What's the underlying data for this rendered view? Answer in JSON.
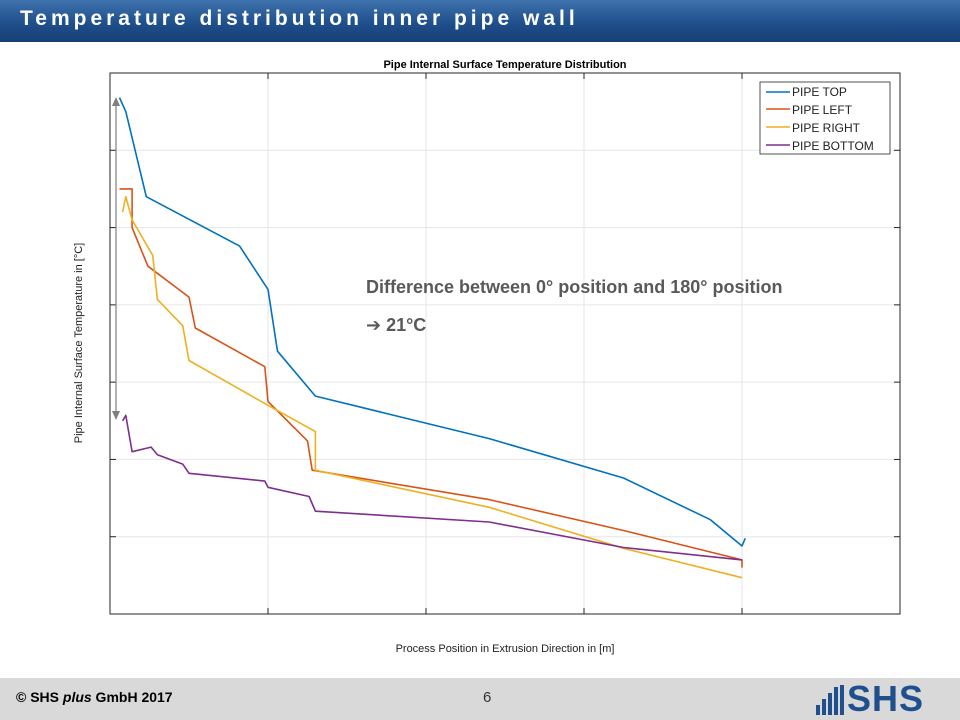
{
  "slide": {
    "title": "Temperature distribution inner pipe wall",
    "copyright_prefix": "© SHS ",
    "copyright_italic": "plus",
    "copyright_suffix": " GmbH 2017",
    "page_number": "6",
    "logo_text": "SHS"
  },
  "colors": {
    "title_bar": "#1f4f8c",
    "footer": "#d9d9d9",
    "pipe_top": "#0072bd",
    "pipe_left": "#d95319",
    "pipe_right": "#edb120",
    "pipe_bottom": "#7e2f8e",
    "annotation": "#595959"
  },
  "annotation": {
    "text": "Difference between 0° position and 180° position",
    "result": "➔ 21°C"
  },
  "chart_data": {
    "type": "line",
    "title": "Pipe Internal Surface Temperature Distribution",
    "xlabel": "Process Position in Extrusion Direction in [m]",
    "ylabel": "Pipe Internal Surface Temperature in [°C]",
    "xlim": [
      0,
      5
    ],
    "ylim": [
      0,
      7
    ],
    "x_tick_labels_shown": false,
    "y_tick_labels_shown": false,
    "grid": true,
    "legend_position": "top-right",
    "series": [
      {
        "name": "PIPE TOP",
        "color": "#0072bd",
        "points": [
          [
            0.06,
            6.68
          ],
          [
            0.1,
            6.5
          ],
          [
            0.23,
            5.4
          ],
          [
            0.82,
            4.76
          ],
          [
            1.0,
            4.2
          ],
          [
            1.06,
            3.4
          ],
          [
            1.3,
            2.82
          ],
          [
            2.4,
            2.27
          ],
          [
            3.25,
            1.76
          ],
          [
            3.8,
            1.22
          ],
          [
            4.0,
            0.88
          ],
          [
            4.02,
            0.98
          ]
        ]
      },
      {
        "name": "PIPE LEFT",
        "color": "#d95319",
        "points": [
          [
            0.06,
            5.5
          ],
          [
            0.14,
            5.5
          ],
          [
            0.14,
            5.0
          ],
          [
            0.24,
            4.5
          ],
          [
            0.5,
            4.1
          ],
          [
            0.54,
            3.7
          ],
          [
            0.98,
            3.2
          ],
          [
            1.0,
            2.75
          ],
          [
            1.25,
            2.24
          ],
          [
            1.28,
            1.86
          ],
          [
            2.4,
            1.48
          ],
          [
            3.25,
            1.08
          ],
          [
            4.0,
            0.7
          ],
          [
            4.0,
            0.6
          ]
        ]
      },
      {
        "name": "PIPE RIGHT",
        "color": "#edb120",
        "points": [
          [
            0.08,
            5.2
          ],
          [
            0.1,
            5.4
          ],
          [
            0.14,
            5.1
          ],
          [
            0.27,
            4.64
          ],
          [
            0.3,
            4.07
          ],
          [
            0.46,
            3.73
          ],
          [
            0.5,
            3.28
          ],
          [
            1.0,
            2.7
          ],
          [
            1.3,
            2.36
          ],
          [
            1.3,
            1.86
          ],
          [
            2.4,
            1.38
          ],
          [
            3.25,
            0.85
          ],
          [
            4.0,
            0.47
          ]
        ]
      },
      {
        "name": "PIPE BOTTOM",
        "color": "#7e2f8e",
        "points": [
          [
            0.08,
            2.5
          ],
          [
            0.1,
            2.57
          ],
          [
            0.14,
            2.1
          ],
          [
            0.26,
            2.16
          ],
          [
            0.3,
            2.06
          ],
          [
            0.46,
            1.94
          ],
          [
            0.5,
            1.82
          ],
          [
            0.98,
            1.72
          ],
          [
            1.0,
            1.64
          ],
          [
            1.26,
            1.52
          ],
          [
            1.3,
            1.33
          ],
          [
            2.4,
            1.19
          ],
          [
            3.25,
            0.86
          ],
          [
            4.0,
            0.7
          ]
        ]
      }
    ]
  }
}
